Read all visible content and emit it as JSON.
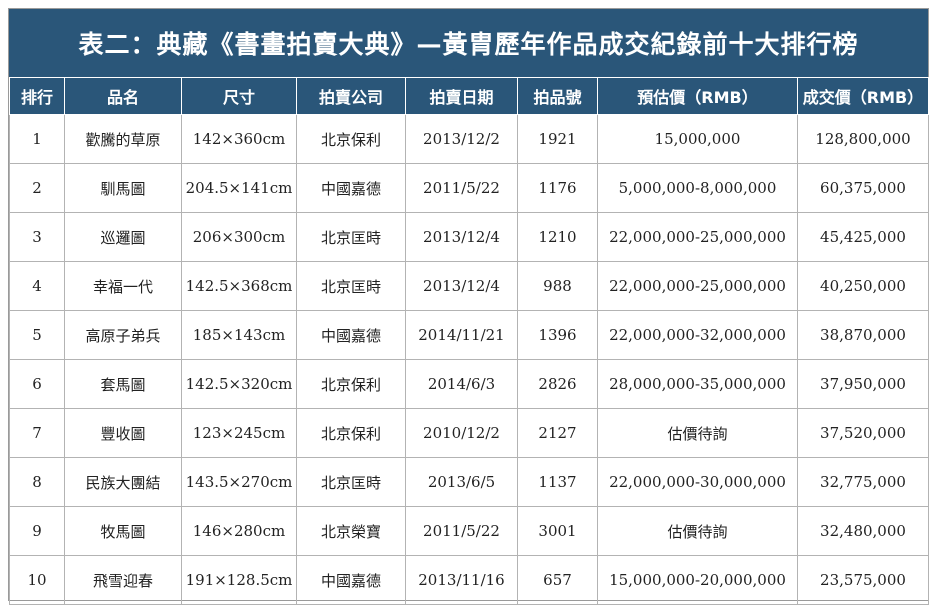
{
  "title": "表二：典藏《書畫拍賣大典》—黃胄歷年作品成交紀錄前十大排行榜",
  "columns": [
    "排行",
    "品名",
    "尺寸",
    "拍賣公司",
    "拍賣日期",
    "拍品號",
    "預估價（RMB）",
    "成交價（RMB）"
  ],
  "rows": [
    {
      "rank": "1",
      "name": "歡騰的草原",
      "size": "142×360cm",
      "company": "北京保利",
      "date": "2013/12/2",
      "lot": "1921",
      "estimate": "15,000,000",
      "price": "128,800,000"
    },
    {
      "rank": "2",
      "name": "馴馬圖",
      "size": "204.5×141cm",
      "company": "中國嘉德",
      "date": "2011/5/22",
      "lot": "1176",
      "estimate": "5,000,000-8,000,000",
      "price": "60,375,000"
    },
    {
      "rank": "3",
      "name": "巡邏圖",
      "size": "206×300cm",
      "company": "北京匡時",
      "date": "2013/12/4",
      "lot": "1210",
      "estimate": "22,000,000-25,000,000",
      "price": "45,425,000"
    },
    {
      "rank": "4",
      "name": "幸福一代",
      "size": "142.5×368cm",
      "company": "北京匡時",
      "date": "2013/12/4",
      "lot": "988",
      "estimate": "22,000,000-25,000,000",
      "price": "40,250,000"
    },
    {
      "rank": "5",
      "name": "高原子弟兵",
      "size": "185×143cm",
      "company": "中國嘉德",
      "date": "2014/11/21",
      "lot": "1396",
      "estimate": "22,000,000-32,000,000",
      "price": "38,870,000"
    },
    {
      "rank": "6",
      "name": "套馬圖",
      "size": "142.5×320cm",
      "company": "北京保利",
      "date": "2014/6/3",
      "lot": "2826",
      "estimate": "28,000,000-35,000,000",
      "price": "37,950,000"
    },
    {
      "rank": "7",
      "name": "豐收圖",
      "size": "123×245cm",
      "company": "北京保利",
      "date": "2010/12/2",
      "lot": "2127",
      "estimate": "估價待詢",
      "price": "37,520,000"
    },
    {
      "rank": "8",
      "name": "民族大團結",
      "size": "143.5×270cm",
      "company": "北京匡時",
      "date": "2013/6/5",
      "lot": "1137",
      "estimate": "22,000,000-30,000,000",
      "price": "32,775,000"
    },
    {
      "rank": "9",
      "name": "牧馬圖",
      "size": "146×280cm",
      "company": "北京榮寶",
      "date": "2011/5/22",
      "lot": "3001",
      "estimate": "估價待詢",
      "price": "32,480,000"
    },
    {
      "rank": "10",
      "name": "飛雪迎春",
      "size": "191×128.5cm",
      "company": "中國嘉德",
      "date": "2013/11/16",
      "lot": "657",
      "estimate": "15,000,000-20,000,000",
      "price": "23,575,000"
    }
  ]
}
